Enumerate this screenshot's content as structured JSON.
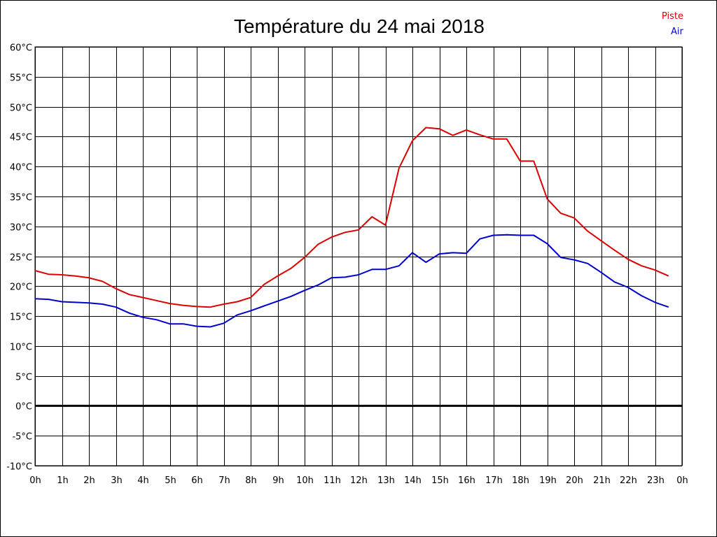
{
  "chart_data": {
    "type": "line",
    "title": "Température du 24 mai 2018",
    "xlabel": "",
    "ylabel": "",
    "x_tick_labels": [
      "0h",
      "1h",
      "2h",
      "3h",
      "4h",
      "5h",
      "6h",
      "7h",
      "8h",
      "9h",
      "10h",
      "11h",
      "12h",
      "13h",
      "14h",
      "15h",
      "16h",
      "17h",
      "18h",
      "19h",
      "20h",
      "21h",
      "22h",
      "23h",
      "0h"
    ],
    "y_tick_labels": [
      "-10°C",
      "-5°C",
      "0°C",
      "5°C",
      "10°C",
      "15°C",
      "20°C",
      "25°C",
      "30°C",
      "35°C",
      "40°C",
      "45°C",
      "50°C",
      "55°C",
      "60°C"
    ],
    "xlim": [
      0,
      24
    ],
    "ylim": [
      -10,
      60
    ],
    "grid": true,
    "zero_line": true,
    "legend_position": "top-right",
    "x": [
      0,
      0.5,
      1,
      1.5,
      2,
      2.5,
      3,
      3.5,
      4,
      4.5,
      5,
      5.5,
      6,
      6.5,
      7,
      7.5,
      8,
      8.5,
      9,
      9.5,
      10,
      10.5,
      11,
      11.5,
      12,
      12.5,
      13,
      13.5,
      14,
      14.5,
      15,
      15.5,
      16,
      16.5,
      17,
      17.5,
      18,
      18.5,
      19,
      19.5,
      20,
      20.5,
      21,
      21.5,
      22,
      22.5,
      23,
      23.5
    ],
    "series": [
      {
        "name": "Piste",
        "color": "#dd0000",
        "values": [
          22.6,
          22.0,
          21.9,
          21.7,
          21.4,
          20.8,
          19.6,
          18.6,
          18.1,
          17.6,
          17.1,
          16.8,
          16.6,
          16.5,
          17.0,
          17.4,
          18.1,
          20.3,
          21.7,
          23.0,
          24.8,
          27.0,
          28.2,
          29.0,
          29.4,
          31.6,
          30.2,
          39.7,
          44.3,
          46.5,
          46.3,
          45.2,
          46.1,
          45.3,
          44.6,
          44.6,
          40.9,
          40.9,
          34.6,
          32.2,
          31.4,
          29.2,
          27.6,
          26.0,
          24.5,
          23.4,
          22.7,
          21.7
        ]
      },
      {
        "name": "Air",
        "color": "#0000cc",
        "values": [
          17.9,
          17.8,
          17.4,
          17.3,
          17.2,
          17.0,
          16.5,
          15.5,
          14.8,
          14.4,
          13.7,
          13.7,
          13.3,
          13.2,
          13.8,
          15.2,
          15.9,
          16.7,
          17.5,
          18.3,
          19.3,
          20.2,
          21.4,
          21.5,
          21.9,
          22.8,
          22.8,
          23.4,
          25.6,
          24.0,
          25.4,
          25.6,
          25.5,
          27.9,
          28.5,
          28.6,
          28.5,
          28.5,
          27.1,
          24.8,
          24.4,
          23.8,
          22.3,
          20.7,
          19.8,
          18.4,
          17.3,
          16.5
        ]
      }
    ]
  }
}
